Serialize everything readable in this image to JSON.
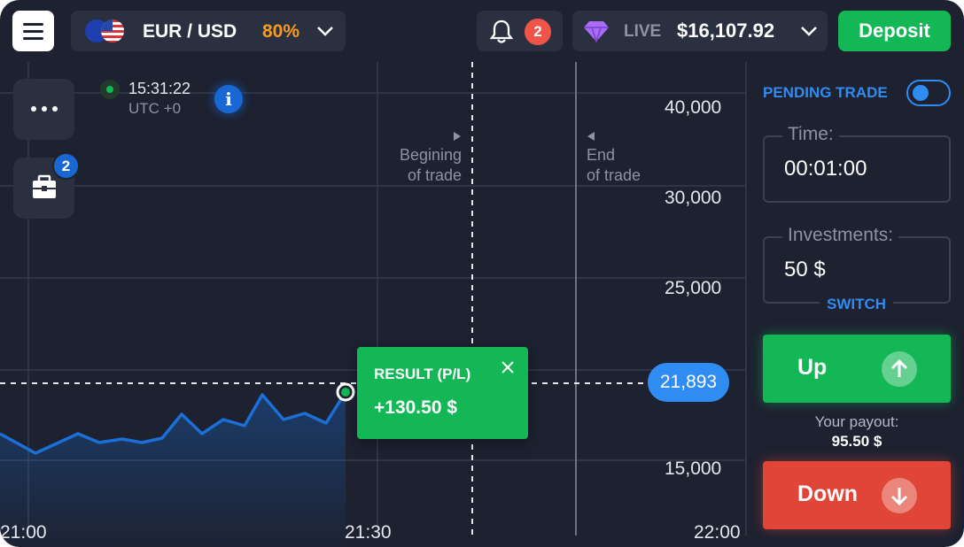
{
  "top_bar": {
    "asset_name": "EUR / USD",
    "asset_payout": "80%",
    "notification_count": "2",
    "account_type": "LIVE",
    "balance": "$16,107.92",
    "deposit_label": "Deposit"
  },
  "chart": {
    "portfolio_count": "2",
    "clock_time": "15:31:22",
    "clock_timezone": "UTC +0",
    "begin_trade_label_1": "Begining",
    "begin_trade_label_2": "of trade",
    "end_trade_label_1": "End",
    "end_trade_label_2": "of trade",
    "y_ticks": [
      "40,000",
      "30,000",
      "25,000",
      "15,000"
    ],
    "x_ticks": [
      "21:00",
      "21:30",
      "22:00"
    ],
    "current_price": "21,893",
    "line_color": "#1b6fd6"
  },
  "result_popup": {
    "title": "RESULT (P/L)",
    "value": "+130.50 $"
  },
  "trade_panel": {
    "pending_trade_label": "PENDING TRADE",
    "time_label": "Time:",
    "time_value": "00:01:00",
    "investment_label": "Investments:",
    "investment_value": "50 $",
    "switch_label": "SWITCH",
    "up_label": "Up",
    "payout_label": "Your payout:",
    "payout_value": "95.50 $",
    "down_label": "Down"
  },
  "colors": {
    "background": "#1d2130",
    "green": "#13b755",
    "red": "#e04538",
    "blue": "#2f8cf2",
    "orange": "#f79a1e"
  }
}
